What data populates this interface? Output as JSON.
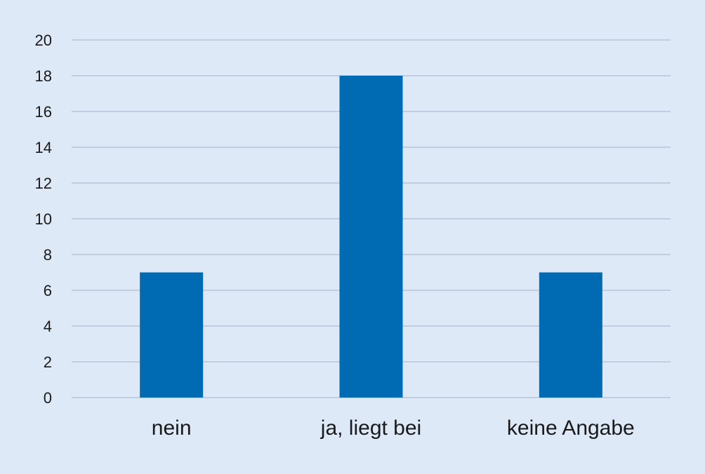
{
  "chart_data": {
    "type": "bar",
    "categories": [
      "nein",
      "ja, liegt bei",
      "keine Angabe"
    ],
    "values": [
      7,
      18,
      7
    ],
    "title": "",
    "xlabel": "",
    "ylabel": "",
    "ylim": [
      0,
      20
    ],
    "yticks": [
      0,
      2,
      4,
      6,
      8,
      10,
      12,
      14,
      16,
      18,
      20
    ],
    "grid": true,
    "legend": "none",
    "colors": {
      "bar": "#006bb3",
      "grid": "#a3b4c8",
      "background": "#dee9f7"
    }
  }
}
